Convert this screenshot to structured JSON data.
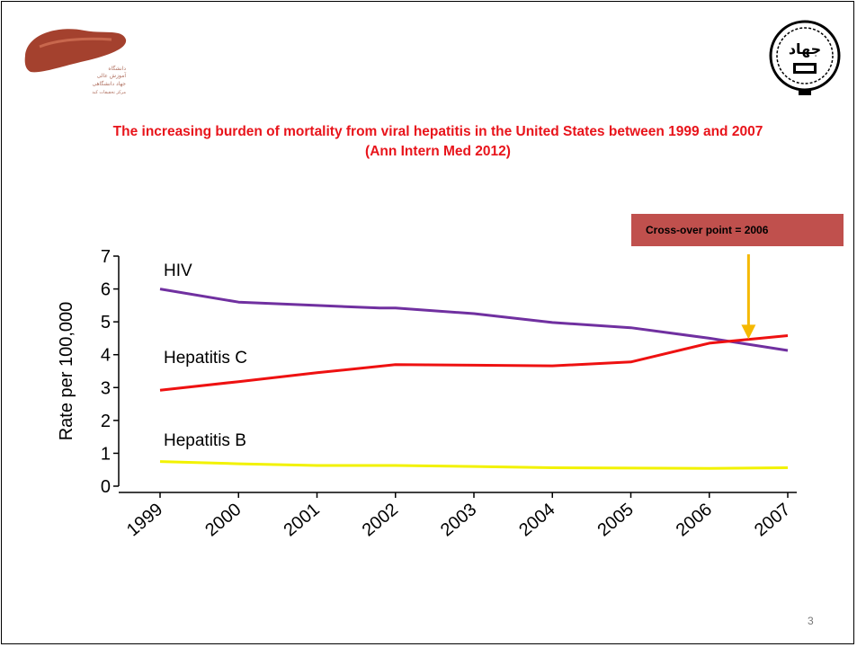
{
  "slide": {
    "title_line1": "The increasing burden of mortality from viral hepatitis in the United States between 1999 and 2007",
    "title_line2": "(Ann Intern Med 2012)",
    "callout": "Cross-over point = 2006",
    "page_number": "3",
    "logo_left_text": [
      "دانشگاه",
      "آموزش عالی",
      "جهاد دانشگاهی",
      "مرکز تحقیقات کبد"
    ],
    "logo_right_text": "جهاد"
  },
  "colors": {
    "title": "#e8141b",
    "callout_bg": "#c0504d",
    "arrow": "#f5b800",
    "hiv": "#7030a0",
    "hepatitis_c": "#ee1111",
    "hepatitis_b": "#f2f200"
  },
  "chart_data": {
    "type": "line",
    "title": "The increasing burden of mortality from viral hepatitis in the United States between 1999 and 2007",
    "xlabel": "",
    "ylabel": "Rate per 100,000",
    "categories": [
      "1999",
      "2000",
      "2001",
      "2002",
      "2003",
      "2004",
      "2005",
      "2006",
      "2007"
    ],
    "ylim": [
      0,
      7
    ],
    "yticks": [
      0,
      1,
      2,
      3,
      4,
      5,
      6,
      7
    ],
    "grid": false,
    "legend": "inline labels",
    "series": [
      {
        "name": "HIV",
        "key": "hiv",
        "x": [
          1999,
          2000,
          2001,
          2001.8,
          2002,
          2003,
          2004,
          2005,
          2006,
          2007
        ],
        "values": [
          6.0,
          5.6,
          5.5,
          5.42,
          5.42,
          5.25,
          4.98,
          4.82,
          4.5,
          4.13
        ]
      },
      {
        "name": "Hepatitis C",
        "key": "hepatitis_c",
        "x": [
          1999,
          2000,
          2001,
          2002,
          2003,
          2004,
          2005,
          2006,
          2007
        ],
        "values": [
          2.92,
          3.18,
          3.45,
          3.7,
          3.68,
          3.66,
          3.78,
          4.35,
          4.58
        ]
      },
      {
        "name": "Hepatitis B",
        "key": "hepatitis_b",
        "x": [
          1999,
          2000,
          2001,
          2002,
          2003,
          2004,
          2005,
          2006,
          2007
        ],
        "values": [
          0.75,
          0.68,
          0.63,
          0.63,
          0.6,
          0.56,
          0.55,
          0.54,
          0.56
        ]
      }
    ],
    "annotations": [
      {
        "text": "Cross-over point = 2006",
        "x": 2006.5,
        "arrow_to_y": 4.42
      }
    ]
  }
}
